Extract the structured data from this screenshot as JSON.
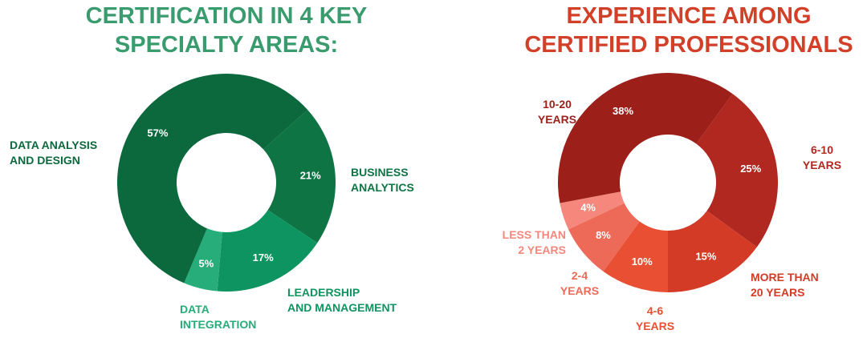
{
  "chart_data": [
    {
      "type": "donut",
      "title": "CERTIFICATION IN 4 KEY\nSPECIALTY AREAS:",
      "title_color": "#3a9c6e",
      "categories": [
        "BUSINESS\nANALYTICS",
        "LEADERSHIP\nAND MANAGEMENT",
        "DATA\nINTEGRATION",
        "DATA ANALYSIS\nAND DESIGN"
      ],
      "values": [
        21,
        17,
        5,
        57
      ],
      "value_labels": [
        "21%",
        "17%",
        "5%",
        "57%"
      ],
      "colors": [
        "#0f7444",
        "#0e9460",
        "#26ad7a",
        "#0b693d"
      ]
    },
    {
      "type": "donut",
      "title": "EXPERIENCE AMONG\nCERTIFIED PROFESSIONALS",
      "title_color": "#d2402a",
      "categories": [
        "6-10\nYEARS",
        "MORE THAN\n20 YEARS",
        "4-6\nYEARS",
        "2-4\nYEARS",
        "LESS THAN\n2 YEARS",
        "10-20\nYEARS"
      ],
      "values": [
        25,
        15,
        10,
        8,
        4,
        38
      ],
      "value_labels": [
        "25%",
        "15%",
        "10%",
        "8%",
        "4%",
        "38%"
      ],
      "colors": [
        "#b02820",
        "#d33b26",
        "#e84f33",
        "#ec6a57",
        "#f5877c",
        "#9c1f1a"
      ]
    }
  ]
}
